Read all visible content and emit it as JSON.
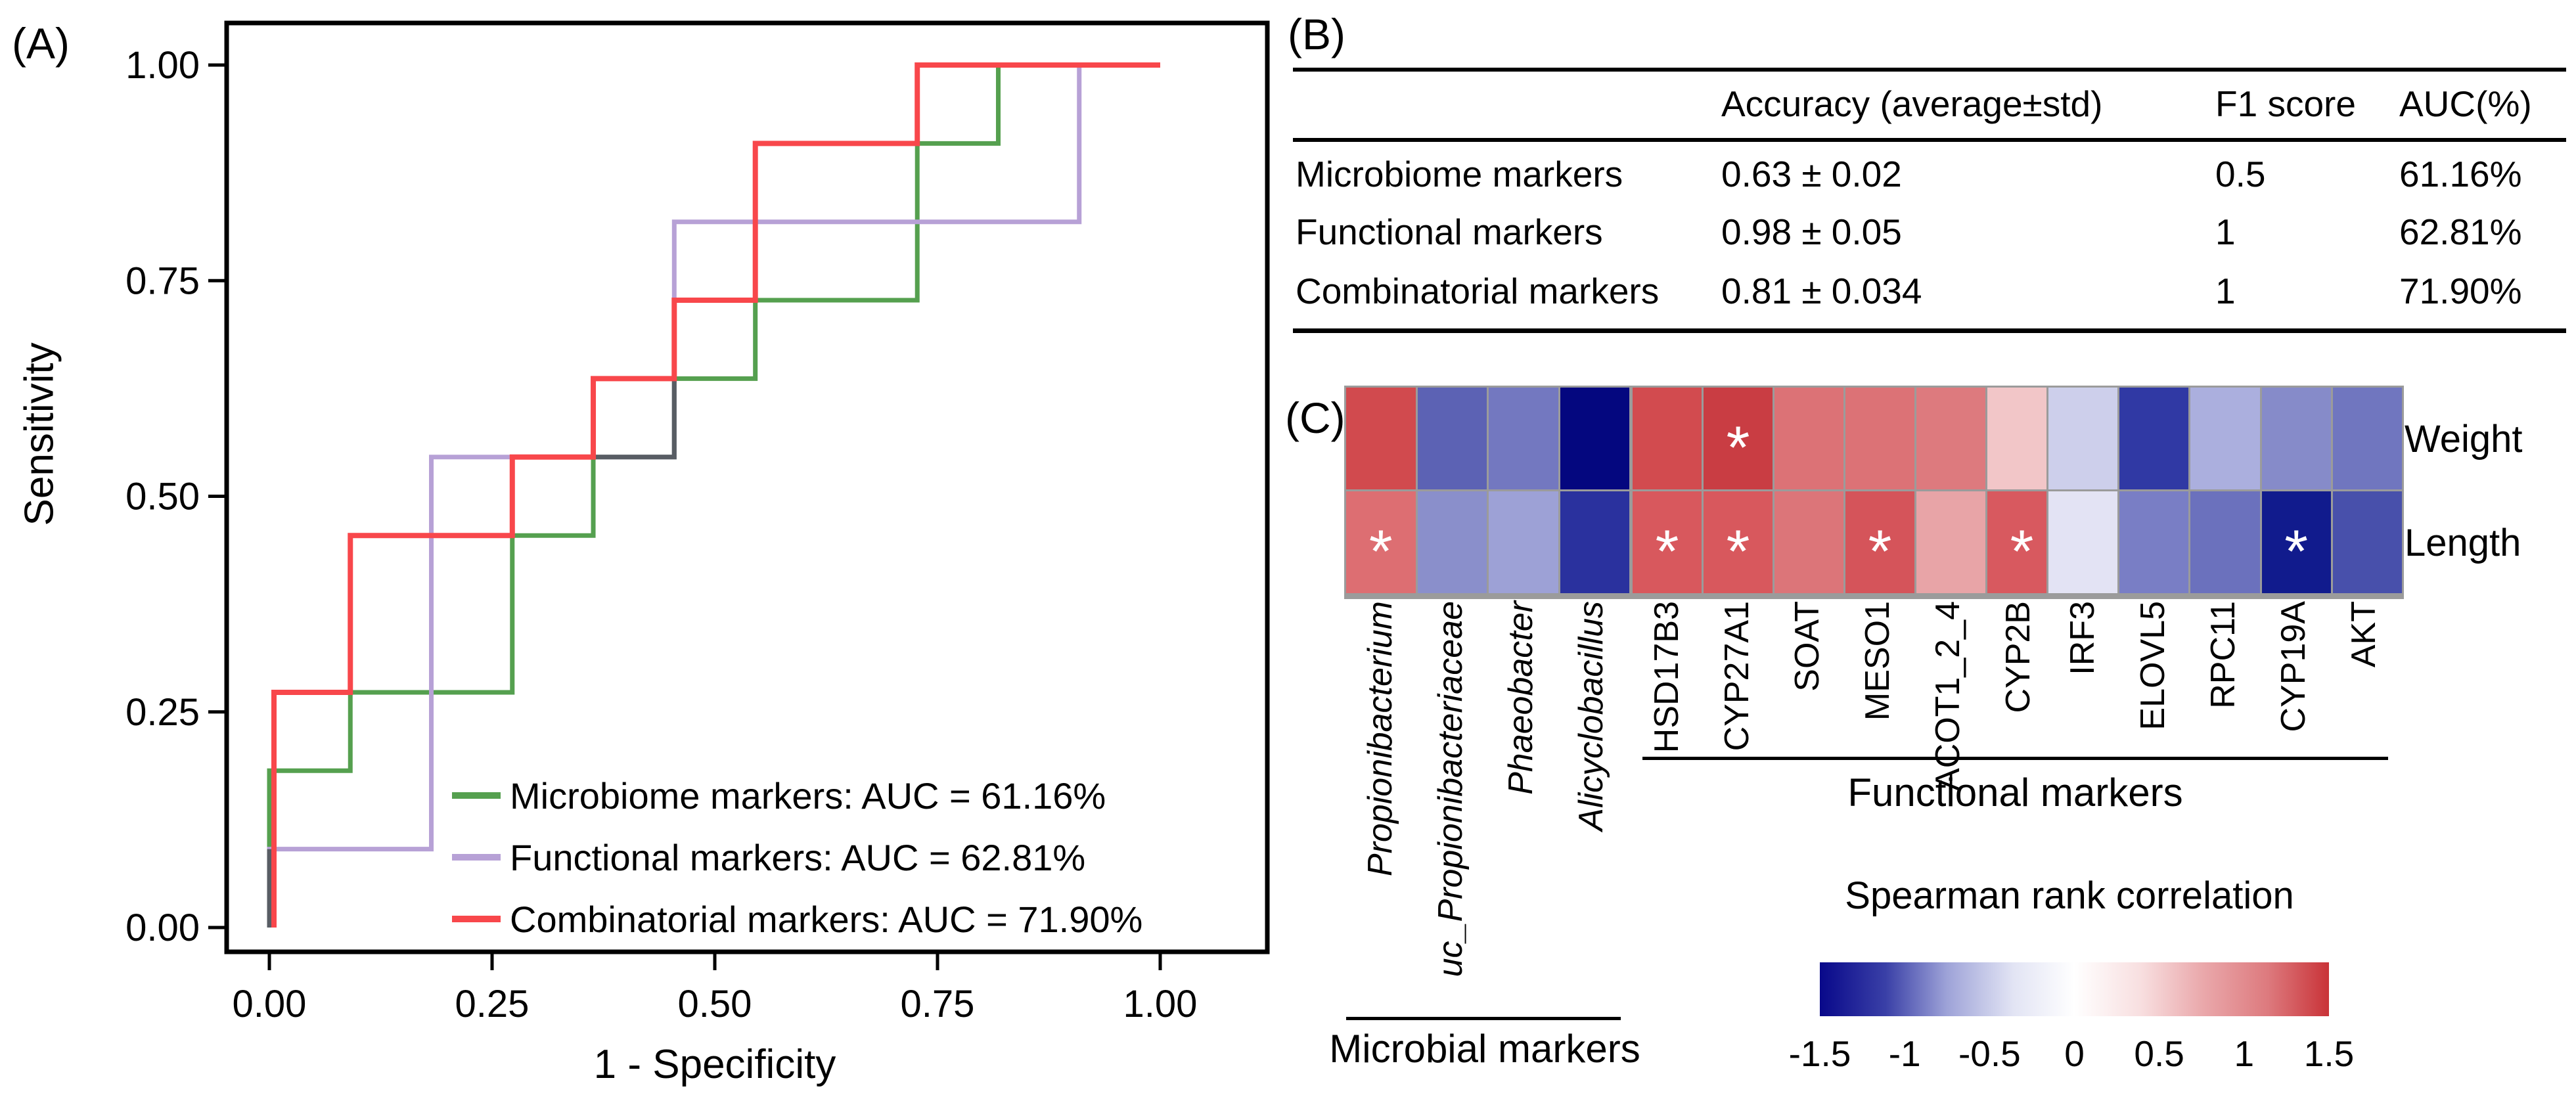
{
  "panels": {
    "a_label": "(A)",
    "b_label": "(B)",
    "c_label": "(C)"
  },
  "chart_data": [
    {
      "id": "roc",
      "type": "line",
      "xlabel": "1 - Specificity",
      "ylabel": "Sensitivity",
      "xlim": [
        0,
        1
      ],
      "ylim": [
        0,
        1
      ],
      "x_ticks": [
        0,
        0.25,
        0.5,
        0.75,
        1
      ],
      "x_tick_labels": [
        "0.00",
        "0.25",
        "0.50",
        "0.75",
        "1.00"
      ],
      "y_ticks": [
        0,
        0.25,
        0.5,
        0.75,
        1
      ],
      "y_tick_labels": [
        "0.00",
        "0.25",
        "0.50",
        "0.75",
        "1.00"
      ],
      "grid": false,
      "legend_position": "lower right inside",
      "series": [
        {
          "name": "Microbiome markers",
          "auc": "61.16%",
          "legend": "Microbiome markers: AUC = 61.16%",
          "color": "#55a04f",
          "points": [
            [
              0,
              0
            ],
            [
              0,
              0.1818
            ],
            [
              0.0909,
              0.1818
            ],
            [
              0.0909,
              0.2727
            ],
            [
              0.2727,
              0.2727
            ],
            [
              0.2727,
              0.4545
            ],
            [
              0.3636,
              0.4545
            ],
            [
              0.3636,
              0.5455
            ],
            [
              0.4545,
              0.5455
            ],
            [
              0.4545,
              0.6364
            ],
            [
              0.5455,
              0.6364
            ],
            [
              0.5455,
              0.7273
            ],
            [
              0.7273,
              0.7273
            ],
            [
              0.7273,
              0.9091
            ],
            [
              0.8182,
              0.9091
            ],
            [
              0.8182,
              1
            ],
            [
              1,
              1
            ]
          ]
        },
        {
          "name": "Functional markers",
          "auc": "62.81%",
          "legend": "Functional markers: AUC = 62.81%",
          "color": "#b7a1d6",
          "points": [
            [
              0,
              0
            ],
            [
              0,
              0.0909
            ],
            [
              0.1818,
              0.0909
            ],
            [
              0.1818,
              0.5455
            ],
            [
              0.4545,
              0.5455
            ],
            [
              0.4545,
              0.8182
            ],
            [
              0.9091,
              0.8182
            ],
            [
              0.9091,
              1
            ],
            [
              1,
              1
            ]
          ]
        },
        {
          "name": "Combinatorial markers",
          "auc": "71.90%",
          "legend": "Combinatorial markers: AUC = 71.90%",
          "color": "#f8474b",
          "points": [
            [
              0,
              0
            ],
            [
              0,
              0.2727
            ],
            [
              0.0909,
              0.2727
            ],
            [
              0.0909,
              0.4545
            ],
            [
              0.2727,
              0.4545
            ],
            [
              0.2727,
              0.5455
            ],
            [
              0.3636,
              0.5455
            ],
            [
              0.3636,
              0.6364
            ],
            [
              0.4545,
              0.6364
            ],
            [
              0.4545,
              0.7273
            ],
            [
              0.5455,
              0.7273
            ],
            [
              0.5455,
              0.9091
            ],
            [
              0.7273,
              0.9091
            ],
            [
              0.7273,
              1
            ],
            [
              1,
              1
            ]
          ]
        }
      ],
      "overlap_color": "#585d64",
      "overlap_segments": [
        [
          [
            0,
            0
          ],
          [
            0,
            0.0909
          ]
        ],
        [
          [
            0.3636,
            0.5455
          ],
          [
            0.4545,
            0.5455
          ],
          [
            0.4545,
            0.6364
          ]
        ]
      ]
    },
    {
      "id": "performance_table",
      "type": "table",
      "columns": [
        "",
        "Accuracy (average±std)",
        "F1 score",
        "AUC(%)"
      ],
      "rows": [
        [
          "Microbiome markers",
          "0.63 ± 0.02",
          "0.5",
          "61.16%"
        ],
        [
          "Functional markers",
          "0.98 ± 0.05",
          "1",
          "62.81%"
        ],
        [
          "Combinatorial markers",
          "0.81 ± 0.034",
          "1",
          "71.90%"
        ]
      ]
    },
    {
      "id": "correlation_heatmap",
      "type": "heatmap",
      "row_labels": [
        "Weight",
        "Length"
      ],
      "col_groups": [
        {
          "italic": true,
          "cols": [
            "Propionibacterium",
            "uc_Propionibacteriaceae",
            "Phaeobacter",
            "Alicyclobacillus"
          ]
        },
        {
          "italic": false,
          "cols": [
            "HSD17B3",
            "CYP27A1",
            "SOAT",
            "MESO1",
            "ACOT1_2_4",
            "CYP2B"
          ]
        },
        {
          "italic": false,
          "cols": [
            "IRF3",
            "ELOVL5",
            "RPC11",
            "CYP19A",
            "AKT"
          ]
        }
      ],
      "group_labels": [
        {
          "text": "Microbial markers",
          "span_groups": [
            0,
            0
          ]
        },
        {
          "text": "Functional markers",
          "span_groups": [
            1,
            2
          ]
        }
      ],
      "cells": {
        "Weight": {
          "values": [
            1.05,
            -0.85,
            -0.7,
            -1.5,
            1.05,
            1.2,
            0.8,
            0.8,
            0.75,
            0.25,
            -0.25,
            -1.2,
            -0.4,
            -0.55,
            -0.7
          ],
          "colors": [
            "#d14a4e",
            "#5c62b4",
            "#7378c0",
            "#04077f",
            "#d24b4f",
            "#c93d43",
            "#dc7276",
            "#dc7276",
            "#dd7a7e",
            "#f2c6c8",
            "#cdcfeb",
            "#3039a4",
            "#abafde",
            "#868bc9",
            "#7076bf"
          ],
          "significant": [
            false,
            false,
            false,
            false,
            false,
            true,
            false,
            false,
            false,
            false,
            false,
            false,
            false,
            false,
            false
          ]
        },
        "Length": {
          "values": [
            0.8,
            -0.55,
            -0.45,
            -1.1,
            0.95,
            0.95,
            0.75,
            1.0,
            0.45,
            0.95,
            -0.12,
            -0.65,
            -0.75,
            -1.45,
            -0.95
          ],
          "colors": [
            "#dd6e72",
            "#8a8fcb",
            "#9da1d6",
            "#2a319e",
            "#d8585d",
            "#d8585d",
            "#dc7579",
            "#d5545a",
            "#e8a4a7",
            "#d8595f",
            "#e3e3f4",
            "#797ec5",
            "#6b71bd",
            "#111b8d",
            "#4850ab"
          ],
          "significant": [
            true,
            false,
            false,
            false,
            true,
            true,
            false,
            true,
            false,
            true,
            false,
            false,
            false,
            true,
            false
          ]
        }
      },
      "significance_marker": "*",
      "colorbar": {
        "title": "Spearman rank correlation",
        "tick_labels": [
          "-1.5",
          "-1",
          "-0.5",
          "0",
          "0.5",
          "1",
          "1.5"
        ],
        "range": [
          -1.5,
          1.5
        ],
        "gradient": [
          "#08088a",
          "#3a40a7",
          "#9ea3d8",
          "#e2e4f4",
          "#ffffff",
          "#f8dfe0",
          "#eaa9ac",
          "#dd7a7e",
          "#c93338"
        ]
      }
    }
  ]
}
